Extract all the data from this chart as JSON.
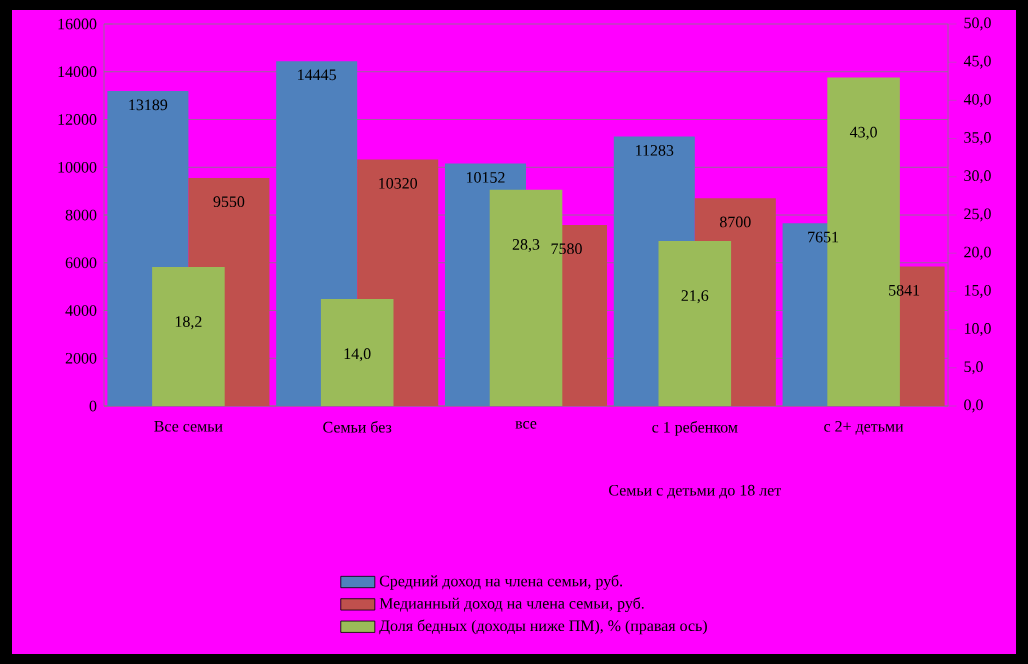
{
  "chart_data": {
    "type": "bar",
    "categories": [
      "Все семьи",
      "Семьи без",
      "все",
      "с 1 ребенком",
      "с 2+ детьми"
    ],
    "series": [
      {
        "name": "Средний доход на члена семьи, руб.",
        "color": "#4f81bd",
        "values": [
          13189,
          14445,
          10152,
          11283,
          7651
        ],
        "value_labels": [
          "13189",
          "14445",
          "10152",
          "11283",
          "7651"
        ]
      },
      {
        "name": "Медианный доход на члена семьи, руб.",
        "color": "#c0504d",
        "values": [
          9550,
          10320,
          7580,
          8700,
          5841
        ],
        "value_labels": [
          "9550",
          "10320",
          "7580",
          "8700",
          "5841"
        ]
      },
      {
        "name": "Доля бедных (доходы ниже ПМ), % (правая ось)",
        "color": "#9bbb59",
        "axis": "y2",
        "values": [
          18.2,
          14.0,
          28.3,
          21.6,
          43.0
        ],
        "value_labels": [
          "18,2",
          "14,0",
          "28,3",
          "21,6",
          "43,0"
        ]
      }
    ],
    "annotations": [
      "Семьи с детьми до 18 лет"
    ],
    "ylim": [
      0,
      16000
    ],
    "yticks": [
      0,
      2000,
      4000,
      6000,
      8000,
      10000,
      12000,
      14000,
      16000
    ],
    "y2lim": [
      0,
      50
    ],
    "y2ticks": [
      {
        "value": 0,
        "label": "0,0"
      },
      {
        "value": 5,
        "label": "5,0"
      },
      {
        "value": 10,
        "label": "10,0"
      },
      {
        "value": 15,
        "label": "15,0"
      },
      {
        "value": 20,
        "label": "20,0"
      },
      {
        "value": 25,
        "label": "25,0"
      },
      {
        "value": 30,
        "label": "30,0"
      },
      {
        "value": 35,
        "label": "35,0"
      },
      {
        "value": 40,
        "label": "40,0"
      },
      {
        "value": 45,
        "label": "45,0"
      },
      {
        "value": 50,
        "label": "50,0"
      }
    ],
    "grid": "y",
    "legend": "bottom"
  }
}
